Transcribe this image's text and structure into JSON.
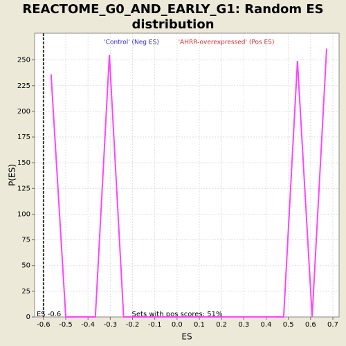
{
  "chart_data": {
    "type": "line",
    "title": [
      "REACTOME_G0_AND_EARLY_G1: Random ES",
      "distribution"
    ],
    "x_label": "ES",
    "y_label": "P(ES)",
    "legend": [
      {
        "name": "'Control' (Neg ES)",
        "color": "#2b2bcc"
      },
      {
        "name": "'AHRR-overexpressed' (Pos ES)",
        "color": "#d42a2a"
      }
    ],
    "x": [
      -0.566,
      -0.5,
      -0.367,
      -0.304,
      -0.24,
      0.479,
      0.541,
      0.607,
      0.672
    ],
    "values": [
      236,
      0,
      0,
      255,
      0,
      0,
      249,
      0,
      261
    ],
    "color": "#ff44ff",
    "es_marker": {
      "value": -0.6,
      "label": "ES -0.6"
    },
    "annotation": "Sets with pos scores: 51%",
    "xlim": [
      -0.64,
      0.728
    ],
    "ylim": [
      0,
      276
    ],
    "xticks": [
      -0.6,
      -0.5,
      -0.4,
      -0.3,
      -0.2,
      -0.1,
      {
        "value": 0,
        "label": "0.0"
      },
      0.1,
      0.2,
      0.3,
      0.4,
      0.5,
      0.6,
      0.7
    ],
    "yticks": [
      0,
      25,
      50,
      75,
      100,
      125,
      150,
      175,
      200,
      225,
      250
    ],
    "grid": true
  }
}
